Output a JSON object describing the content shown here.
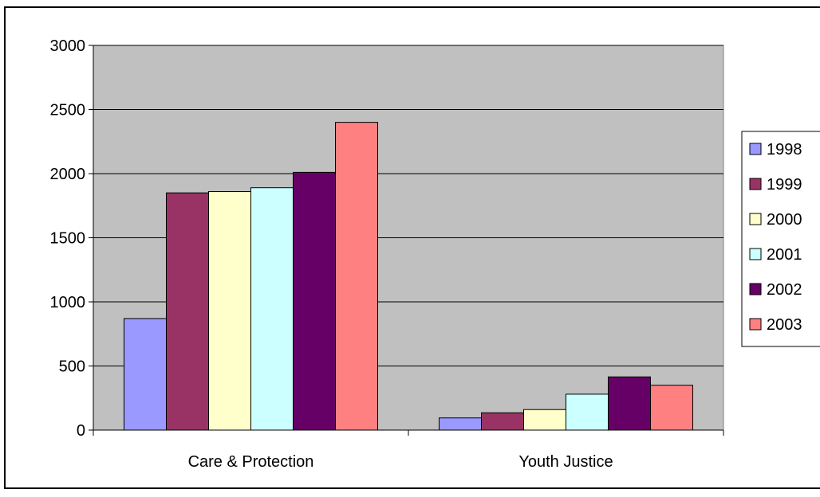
{
  "chart_data": {
    "type": "bar",
    "title": "",
    "xlabel": "",
    "ylabel": "",
    "categories": [
      "Care & Protection",
      "Youth Justice"
    ],
    "series": [
      {
        "name": "1998",
        "values": [
          870,
          95
        ]
      },
      {
        "name": "1999",
        "values": [
          1850,
          135
        ]
      },
      {
        "name": "2000",
        "values": [
          1860,
          160
        ]
      },
      {
        "name": "2001",
        "values": [
          1890,
          280
        ]
      },
      {
        "name": "2002",
        "values": [
          2010,
          415
        ]
      },
      {
        "name": "2003",
        "values": [
          2400,
          350
        ]
      }
    ],
    "ylim": [
      0,
      3000
    ],
    "yticks": [
      "0",
      "500",
      "1000",
      "1500",
      "2000",
      "2500",
      "3000"
    ],
    "grid": true,
    "legend": "right",
    "colors": {
      "plot_background": "#c0c0c0",
      "series": [
        "#9999ff",
        "#993366",
        "#ffffcc",
        "#ccffff",
        "#660066",
        "#ff8080"
      ]
    }
  }
}
